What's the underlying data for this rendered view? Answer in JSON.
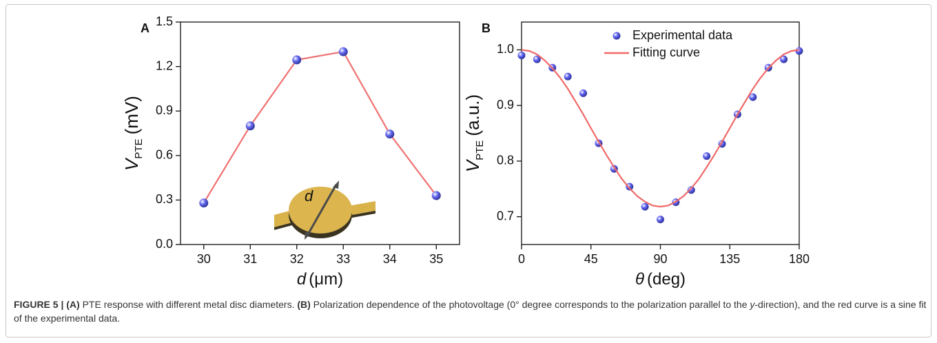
{
  "chart_data": [
    {
      "type": "line",
      "panel_label": "A",
      "x_label": {
        "symbol": "d",
        "unit": "(μm)"
      },
      "y_label": {
        "symbol": "V",
        "subscript": "PTE",
        "unit": "(mV)"
      },
      "inset_label": "d",
      "x": [
        30,
        31,
        32,
        33,
        34,
        35
      ],
      "values": [
        0.28,
        0.8,
        1.245,
        1.3,
        0.745,
        0.33
      ],
      "color": "#f07070",
      "marker_color": "#6469ef",
      "xlim": [
        29.5,
        35.5
      ],
      "xticks": [
        30,
        31,
        32,
        33,
        34,
        35
      ],
      "ylim": [
        0,
        1.5
      ],
      "yticks": [
        {
          "value": 0,
          "label": "0.0"
        },
        0.3,
        0.6,
        0.9,
        1.2,
        1.5
      ]
    },
    {
      "type": "scatter",
      "panel_label": "B",
      "x_label": {
        "symbol": "θ",
        "unit": "(deg)"
      },
      "y_label": {
        "symbol": "V",
        "subscript": "PTE",
        "unit": "(a.u.)"
      },
      "series": [
        {
          "name": "Experimental data",
          "type": "scatter",
          "color": "#5c60ee",
          "x": [
            0,
            10,
            20,
            30,
            40,
            50,
            60,
            70,
            80,
            90,
            100,
            110,
            120,
            130,
            140,
            150,
            160,
            170,
            180
          ],
          "values": [
            0.99,
            0.983,
            0.968,
            0.952,
            0.922,
            0.832,
            0.786,
            0.754,
            0.718,
            0.695,
            0.726,
            0.748,
            0.809,
            0.831,
            0.884,
            0.915,
            0.968,
            0.983,
            0.998
          ]
        },
        {
          "name": "Fitting curve",
          "type": "line",
          "color": "#f06868",
          "x": [
            0,
            5,
            10,
            15,
            20,
            25,
            30,
            35,
            40,
            45,
            50,
            55,
            60,
            65,
            70,
            75,
            80,
            85,
            90,
            95,
            100,
            105,
            110,
            115,
            120,
            125,
            130,
            135,
            140,
            145,
            150,
            155,
            160,
            165,
            170,
            175,
            180
          ],
          "values": [
            1.0,
            0.998,
            0.992,
            0.981,
            0.967,
            0.95,
            0.93,
            0.907,
            0.884,
            0.859,
            0.835,
            0.811,
            0.789,
            0.768,
            0.751,
            0.737,
            0.727,
            0.72,
            0.718,
            0.72,
            0.727,
            0.737,
            0.751,
            0.768,
            0.789,
            0.811,
            0.835,
            0.859,
            0.884,
            0.907,
            0.93,
            0.95,
            0.967,
            0.981,
            0.992,
            0.998,
            1.0
          ]
        }
      ],
      "xlim": [
        0,
        180
      ],
      "xticks": [
        0,
        45,
        90,
        135,
        180
      ],
      "ylim": [
        0.65,
        1.05
      ],
      "yticks": [
        0.7,
        0.8,
        0.9,
        {
          "value": 1.0,
          "label": "1.0"
        }
      ]
    }
  ],
  "caption": {
    "figure": "FIGURE 5 | ",
    "a_label": "(A)",
    "a_text": " PTE response with different metal disc diameters. ",
    "b_label": "(B)",
    "b_text": " Polarization dependence of the photovoltage (0° degree corresponds to the polarization parallel to the ",
    "b_italic": "y",
    "b_rest": "-direction), and the red curve is a sine fit of the experimental data."
  }
}
